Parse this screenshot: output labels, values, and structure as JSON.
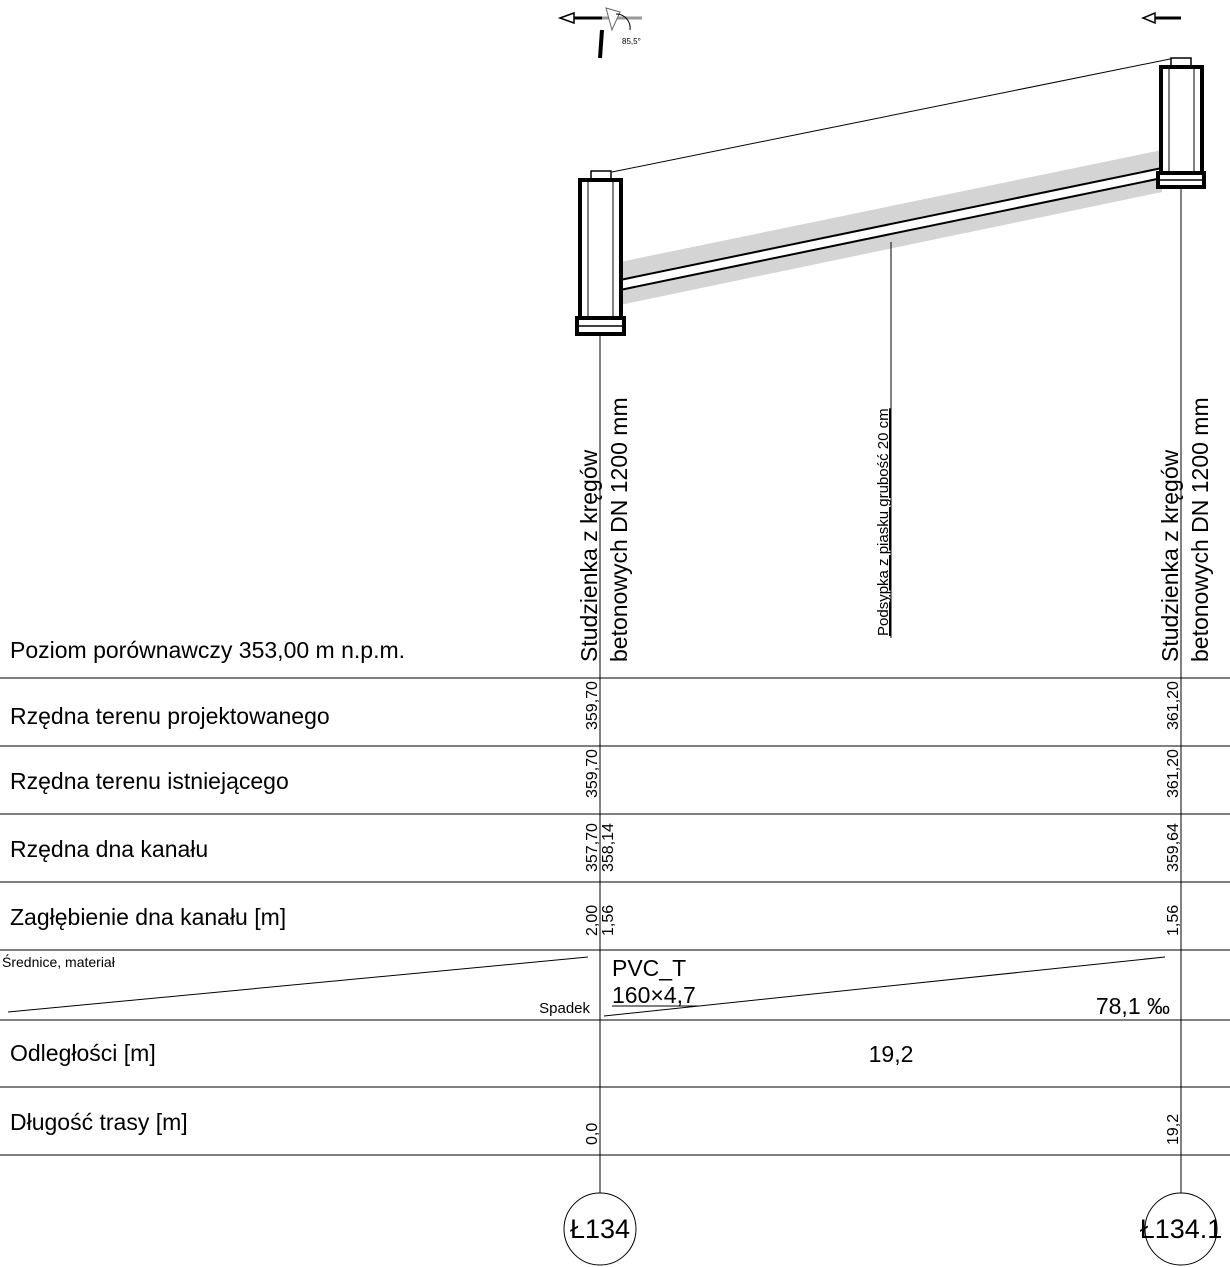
{
  "profile": {
    "comparison_level": "Poziom porównawczy 353,00 m n.p.m.",
    "orientation_angle": "85,5°",
    "manhole_left_label_1": "Studzienka z kręgów",
    "manhole_left_label_2": "betonowych DN 1200 mm",
    "manhole_right_label_1": "Studzienka z kręgów",
    "manhole_right_label_2": "betonowych DN 1200 mm",
    "bedding_label": "Podsypka z piasku grubość 20 cm"
  },
  "table": {
    "rows": {
      "terrain_design": "Rzędna terenu projektowanego",
      "terrain_existing": "Rzędna terenu istniejącego",
      "sewer_bottom": "Rzędna dna kanału",
      "depth": "Zagłębienie dna kanału [m]",
      "diameter_material": "Średnice, materiał",
      "slope": "Spadek",
      "distances": "Odległości [m]",
      "route_length": "Długość trasy [m]"
    },
    "values": {
      "left_terrain_design": "359,70",
      "right_terrain_design": "361,20",
      "left_terrain_existing": "359,70",
      "right_terrain_existing": "361,20",
      "left_bottom_1": "357,70",
      "left_bottom_2": "358,14",
      "right_bottom": "359,64",
      "left_depth_1": "2,00",
      "left_depth_2": "1,56",
      "right_depth": "1,56",
      "pipe_material": "PVC_T",
      "pipe_size": "160×4,7",
      "slope_value": "78,1 ‰",
      "distance": "19,2",
      "left_route": "0,0",
      "right_route": "19,2"
    }
  },
  "nodes": {
    "left": "Ł134",
    "right": "Ł134.1"
  }
}
